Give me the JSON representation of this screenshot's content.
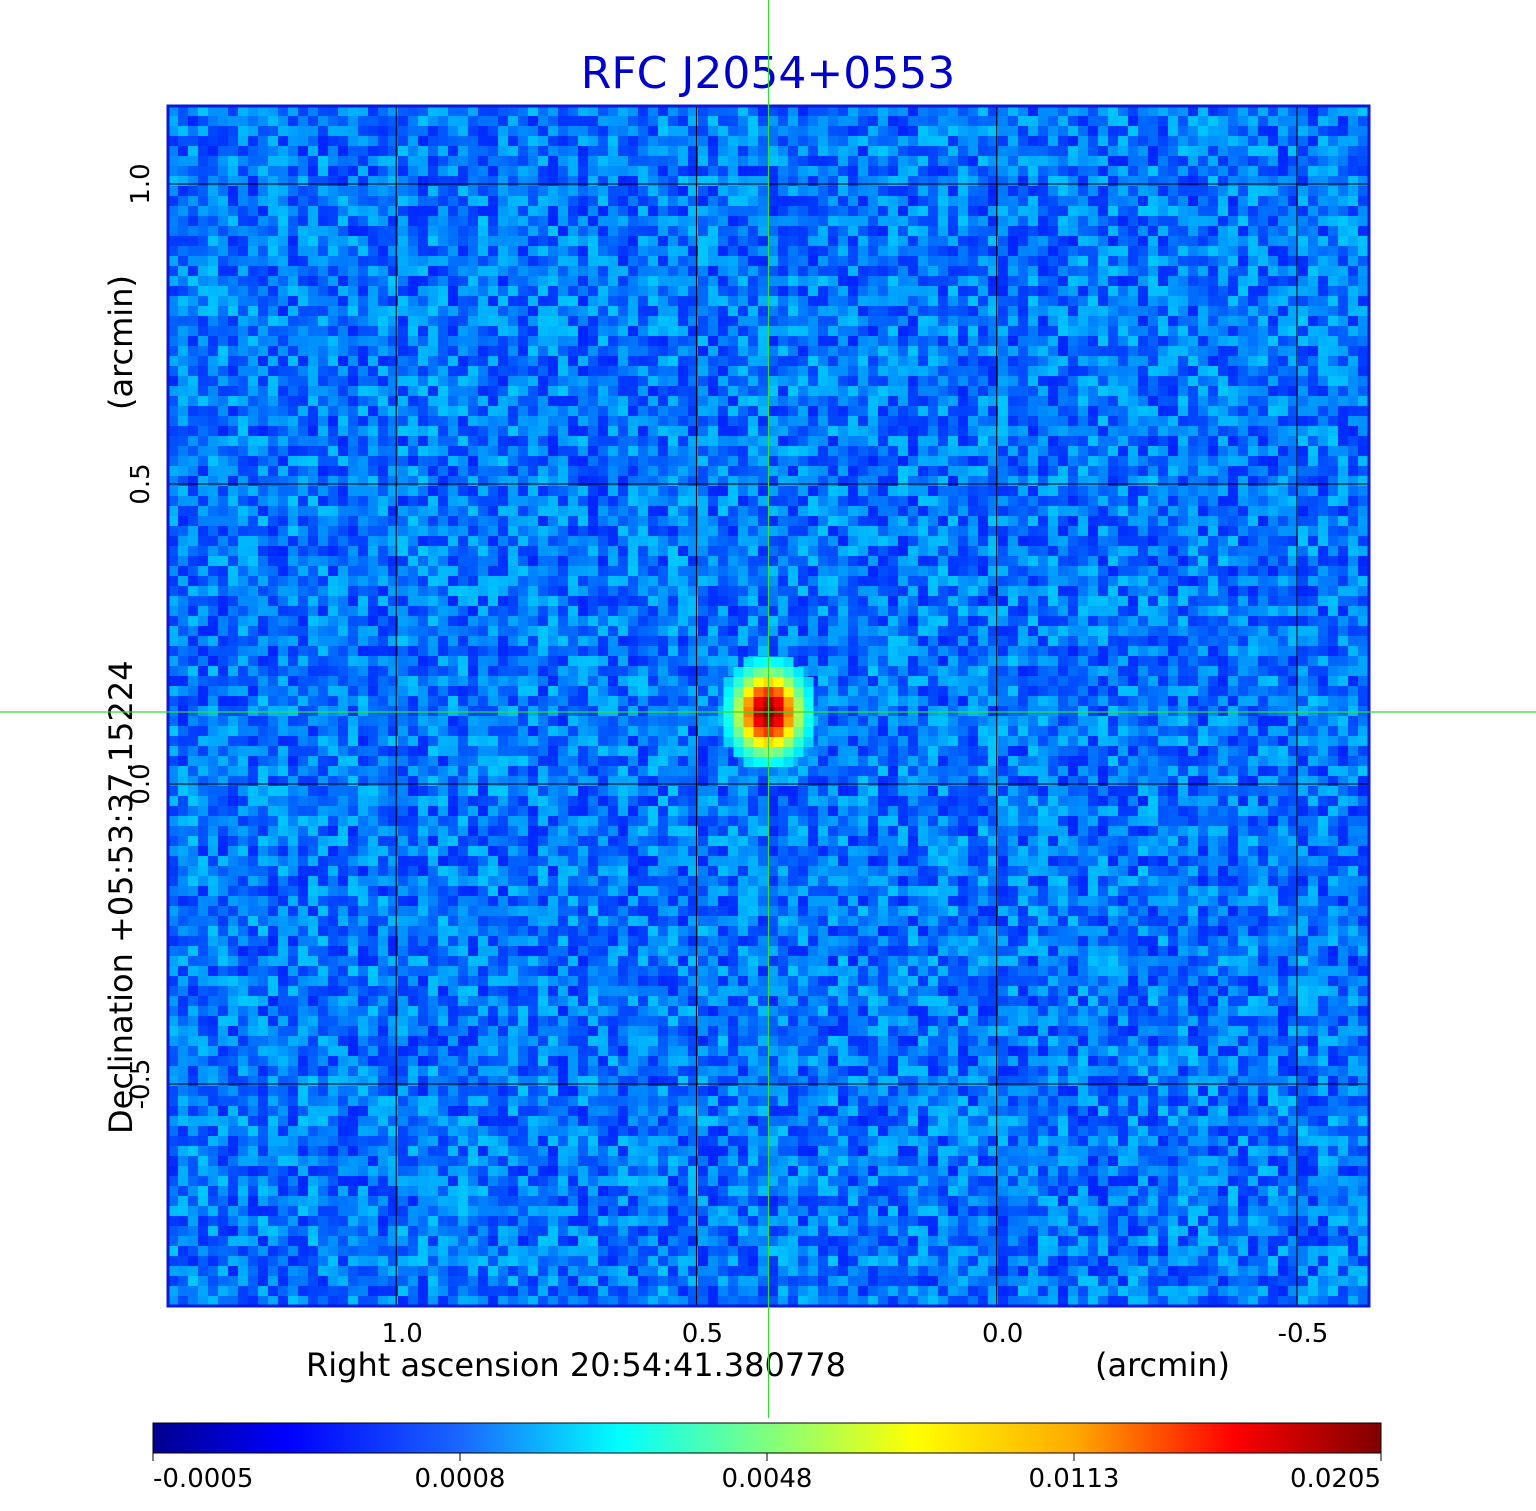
{
  "chart_data": {
    "type": "heatmap",
    "title": "RFC J2054+0553",
    "xlabel": "Right ascension  20:54:41.380778",
    "xlabel_unit": "(arcmin)",
    "ylabel": "Declination  +05:53:37.15224",
    "ylabel_unit": "(arcmin)",
    "xlim": [
      1.38,
      -0.62
    ],
    "ylim": [
      -0.87,
      1.13
    ],
    "x_ticks": [
      {
        "value": 1.0,
        "label": "1.0"
      },
      {
        "value": 0.5,
        "label": "0.5"
      },
      {
        "value": 0.0,
        "label": "0.0"
      },
      {
        "value": -0.5,
        "label": "-0.5"
      }
    ],
    "y_ticks": [
      {
        "value": 1.0,
        "label": "1.0"
      },
      {
        "value": 0.5,
        "label": "0.5"
      },
      {
        "value": 0.0,
        "label": "0.0"
      },
      {
        "value": -0.5,
        "label": "-0.5"
      }
    ],
    "grid": true,
    "colormap": "jet",
    "colorbar_ticks": [
      "-0.0005",
      "0.0008",
      "0.0048",
      "0.0113",
      "0.0205"
    ],
    "colorbar_range": [
      -0.0005,
      0.0205
    ],
    "source": {
      "x": 0.38,
      "y": 0.12,
      "peak": 0.0205
    },
    "crosshair": {
      "x": 0.38,
      "y": 0.12,
      "color": "#33dd33"
    },
    "background_level": 0.0002,
    "colors": {
      "title": "#0000cc",
      "frame": "#0a1ad6",
      "grid": "#000000"
    }
  }
}
